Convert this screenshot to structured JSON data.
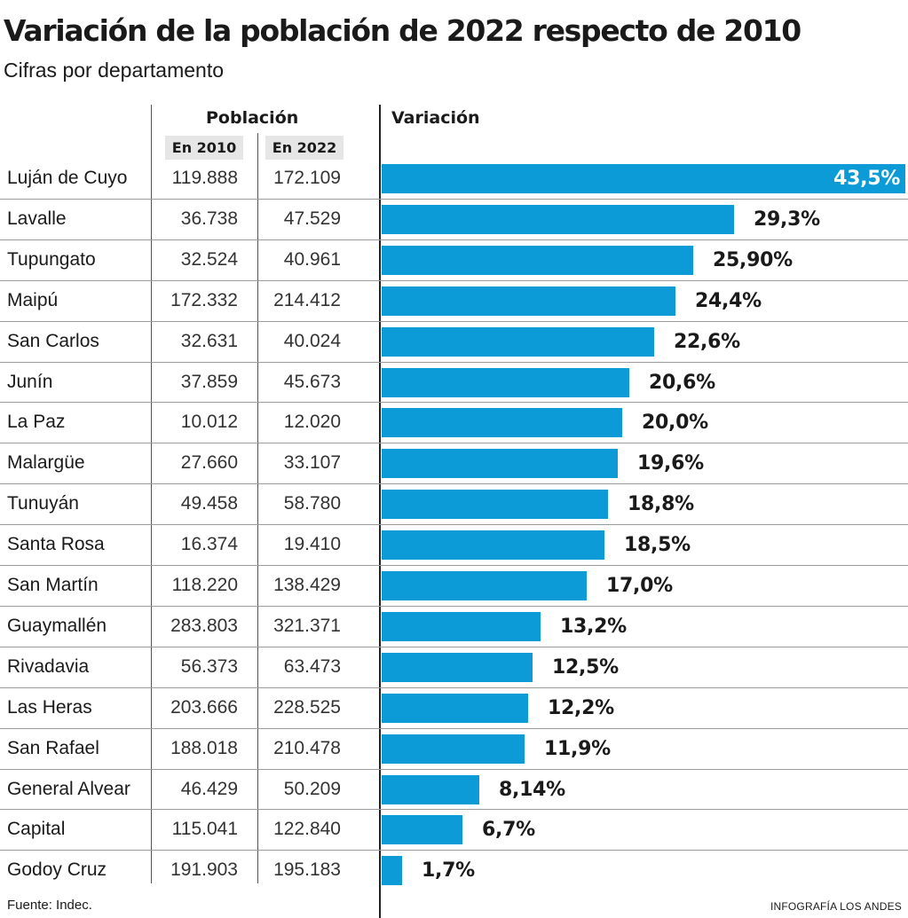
{
  "title": "Variación de la población de 2022 respecto de 2010",
  "subtitle": "Cifras por departamento",
  "headers": {
    "poblacion": "Población",
    "en2010": "En 2010",
    "en2022": "En 2022",
    "variacion": "Variación"
  },
  "source": "Fuente: Indec.",
  "credit": "INFOGRAFÍA LOS ANDES",
  "colors": {
    "bar": "#0d9bd8",
    "text": "#1a1a1a",
    "header_bg": "#e6e6e6"
  },
  "chart_data": {
    "type": "bar",
    "orientation": "horizontal",
    "title": "Variación de la población de 2022 respecto de 2010",
    "subtitle": "Cifras por departamento",
    "categories": [
      "Luján de Cuyo",
      "Lavalle",
      "Tupungato",
      "Maipú",
      "San Carlos",
      "Junín",
      "La Paz",
      "Malargüe",
      "Tunuyán",
      "Santa Rosa",
      "San Martín",
      "Guaymallén",
      "Rivadavia",
      "Las Heras",
      "San Rafael",
      "General Alvear",
      "Capital",
      "Godoy Cruz"
    ],
    "pop2010": [
      "119.888",
      "36.738",
      "32.524",
      "172.332",
      "32.631",
      "37.859",
      "10.012",
      "27.660",
      "49.458",
      "16.374",
      "118.220",
      "283.803",
      "56.373",
      "203.666",
      "188.018",
      "46.429",
      "115.041",
      "191.903"
    ],
    "pop2022": [
      "172.109",
      "47.529",
      "40.961",
      "214.412",
      "40.024",
      "45.673",
      "12.020",
      "33.107",
      "58.780",
      "19.410",
      "138.429",
      "321.371",
      "63.473",
      "228.525",
      "210.478",
      "50.209",
      "122.840",
      "195.183"
    ],
    "values": [
      43.5,
      29.3,
      25.9,
      24.4,
      22.6,
      20.6,
      20.0,
      19.6,
      18.8,
      18.5,
      17.0,
      13.2,
      12.5,
      12.2,
      11.9,
      8.14,
      6.7,
      1.7
    ],
    "value_labels": [
      "43,5%",
      "29,3%",
      "25,90%",
      "24,4%",
      "22,6%",
      "20,6%",
      "20,0%",
      "19,6%",
      "18,8%",
      "18,5%",
      "17,0%",
      "13,2%",
      "12,5%",
      "12,2%",
      "11,9%",
      "8,14%",
      "6,7%",
      "1,7%"
    ],
    "xlim": [
      0,
      43.5
    ],
    "grid": false,
    "legend": "none"
  }
}
